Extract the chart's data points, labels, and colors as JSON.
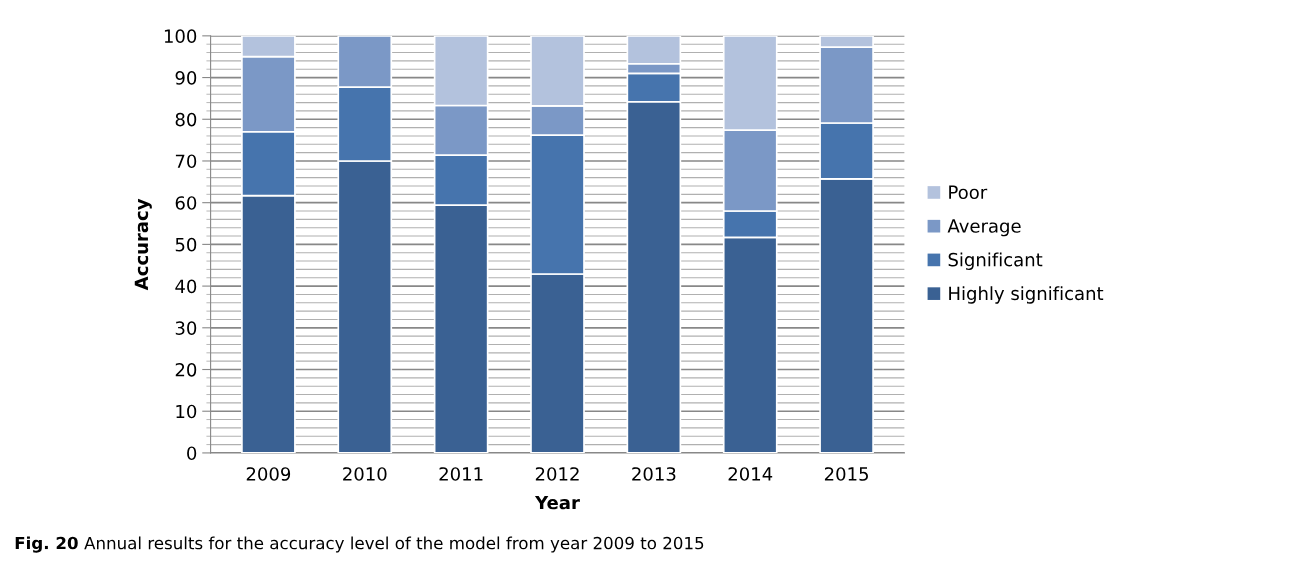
{
  "chart_data": {
    "type": "bar",
    "stacked": true,
    "xlabel": "Year",
    "ylabel": "Accuracy",
    "categories": [
      "2009",
      "2010",
      "2011",
      "2012",
      "2013",
      "2014",
      "2015"
    ],
    "series": [
      {
        "name": "Highly significant",
        "color": "#3a6193",
        "values": [
          61.7,
          70,
          59.4,
          42.9,
          84.2,
          51.7,
          65.7
        ]
      },
      {
        "name": "Significant",
        "color": "#4674ad",
        "values": [
          15.3,
          17.7,
          12,
          33.3,
          6.8,
          6.3,
          13.4
        ]
      },
      {
        "name": "Average",
        "color": "#7b98c6",
        "values": [
          18,
          12.3,
          11.9,
          7,
          2.3,
          19.4,
          18.2
        ]
      },
      {
        "name": "Poor",
        "color": "#b3c2dd",
        "values": [
          5,
          null,
          16.7,
          16.8,
          6.7,
          22.6,
          2.7
        ]
      }
    ],
    "ylim": [
      0,
      100
    ],
    "yticks": [
      0,
      10,
      20,
      30,
      40,
      50,
      60,
      70,
      80,
      90,
      100
    ],
    "grid": "y",
    "legend": "right",
    "annotations": [
      "Fig. 20 Annual results for the accuracy level of the model from year 2009 to 2015"
    ]
  }
}
